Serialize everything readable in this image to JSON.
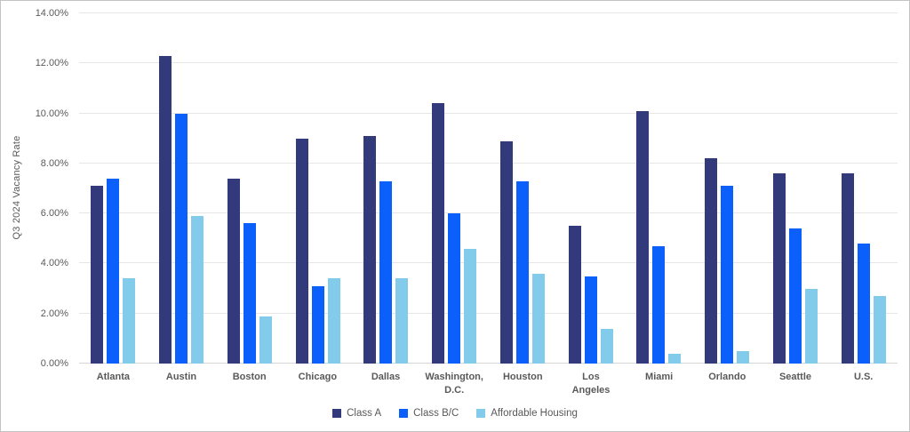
{
  "chart_data": {
    "type": "bar",
    "title": "",
    "ylabel": "Q3 2024 Vacancy Rate",
    "xlabel": "",
    "ylim": [
      0,
      14
    ],
    "ytick_step": 2,
    "yticks": [
      "0.00%",
      "2.00%",
      "4.00%",
      "6.00%",
      "8.00%",
      "10.00%",
      "12.00%",
      "14.00%"
    ],
    "grid": true,
    "legend_position": "bottom",
    "categories": [
      "Atlanta",
      "Austin",
      "Boston",
      "Chicago",
      "Dallas",
      "Washington, D.C.",
      "Houston",
      "Los Angeles",
      "Miami",
      "Orlando",
      "Seattle",
      "U.S."
    ],
    "series": [
      {
        "name": "Class A",
        "color": "#333A7C",
        "values": [
          7.1,
          12.3,
          7.4,
          9.0,
          9.1,
          10.4,
          8.9,
          5.5,
          10.1,
          8.2,
          7.6,
          7.6
        ]
      },
      {
        "name": "Class B/C",
        "color": "#0B5FFB",
        "values": [
          7.4,
          10.0,
          5.6,
          3.1,
          7.3,
          6.0,
          7.3,
          3.5,
          4.7,
          7.1,
          5.4,
          4.8
        ]
      },
      {
        "name": "Affordable Housing",
        "color": "#82CBEA",
        "values": [
          3.4,
          5.9,
          1.9,
          3.4,
          3.4,
          4.6,
          3.6,
          1.4,
          0.4,
          0.5,
          3.0,
          2.7
        ]
      }
    ]
  },
  "colors": {
    "background": "#FFFFFF",
    "gridline": "#E6E6E6",
    "baseline": "#D6D6D6",
    "axis_text": "#595959",
    "border": "#C3C3C3"
  }
}
